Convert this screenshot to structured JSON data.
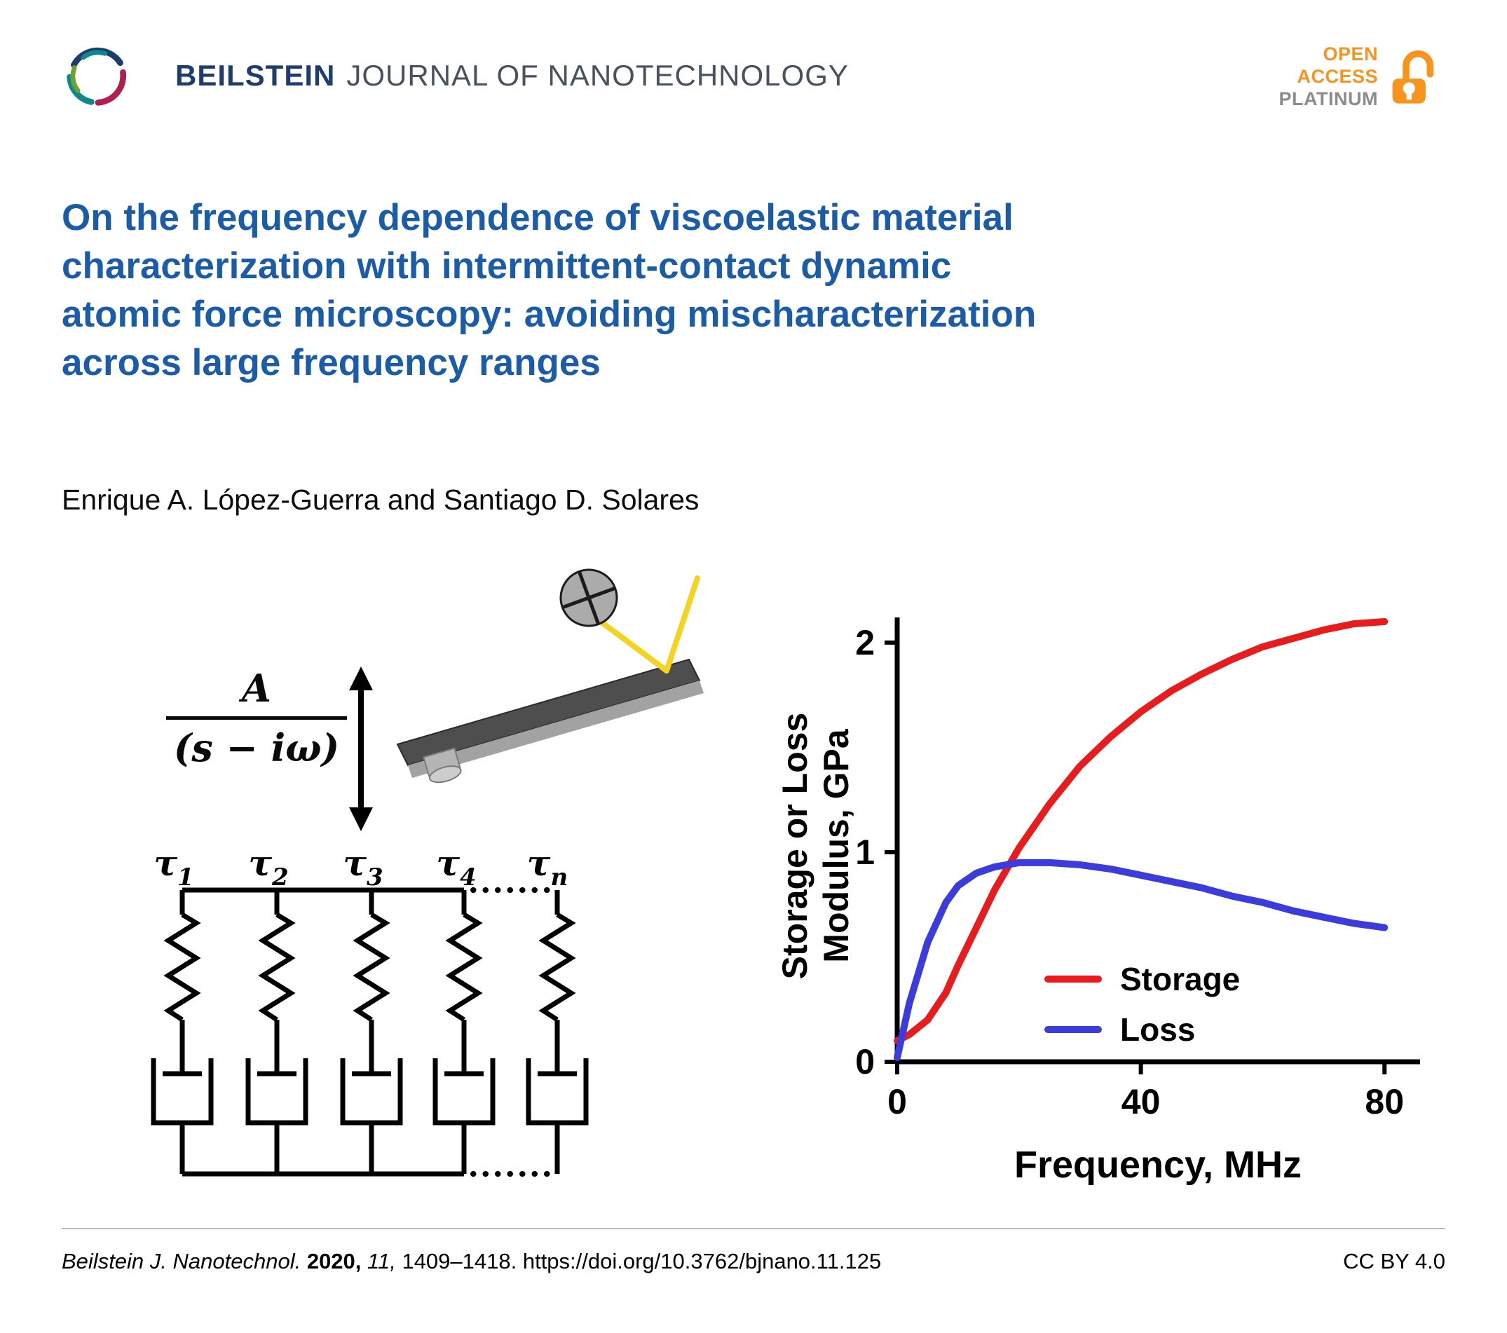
{
  "colors": {
    "title_blue": "#1a5ca8",
    "beilstein_navy": "#1e3c6e",
    "journal_gray": "#47525e",
    "open_access_orange": "#f7941d",
    "platinum_gray": "#8c8c8c",
    "storage_red": "#e81b1d",
    "loss_blue": "#3c3cdd",
    "laser_yellow": "#f4d420"
  },
  "header": {
    "journal_name_bold": "BEILSTEIN",
    "journal_name_rest": "JOURNAL OF NANOTECHNOLOGY",
    "open_access_line1": "OPEN",
    "open_access_line2": "ACCESS",
    "open_access_line3": "PLATINUM"
  },
  "article": {
    "title": "On the frequency dependence of viscoelastic material characterization with intermittent-contact dynamic atomic force microscopy: avoiding mischaracterization across large frequency ranges",
    "title_lines": [
      "On the frequency dependence of viscoelastic material",
      "characterization with intermittent-contact dynamic",
      "atomic force microscopy: avoiding mischaracterization",
      "across large frequency ranges"
    ],
    "authors": "Enrique A. López-Guerra and Santiago D. Solares"
  },
  "figure": {
    "formula_numerator": "A",
    "formula_denominator": "(s − iω)",
    "tau_labels": [
      {
        "base": "τ",
        "sub": "1"
      },
      {
        "base": "τ",
        "sub": "2"
      },
      {
        "base": "τ",
        "sub": "3"
      },
      {
        "base": "τ",
        "sub": "4"
      },
      {
        "base": "τ",
        "sub": "n"
      }
    ]
  },
  "chart_data": {
    "type": "line",
    "title": "",
    "xlabel": "Frequency, MHz",
    "ylabel": "Storage or Loss Modulus, GPa",
    "ylabel_lines": [
      "Storage or Loss",
      "Modulus, GPa"
    ],
    "xlim": [
      0,
      84
    ],
    "ylim": [
      0,
      2.12
    ],
    "xticks": [
      0,
      40,
      80
    ],
    "yticks": [
      0,
      1,
      2
    ],
    "grid": false,
    "legend_position": "inside center-right",
    "series": [
      {
        "name": "Storage",
        "color": "#e81b1d",
        "x": [
          0,
          2,
          5,
          8,
          10,
          13,
          16,
          20,
          25,
          30,
          35,
          40,
          45,
          50,
          55,
          60,
          65,
          70,
          75,
          80
        ],
        "y": [
          0.1,
          0.13,
          0.2,
          0.33,
          0.46,
          0.64,
          0.82,
          1.02,
          1.23,
          1.41,
          1.55,
          1.67,
          1.77,
          1.85,
          1.92,
          1.98,
          2.02,
          2.06,
          2.09,
          2.1
        ]
      },
      {
        "name": "Loss",
        "color": "#3c3cdd",
        "x": [
          0,
          2,
          5,
          8,
          10,
          13,
          16,
          20,
          25,
          30,
          35,
          40,
          45,
          50,
          55,
          60,
          65,
          70,
          75,
          80
        ],
        "y": [
          0.02,
          0.28,
          0.57,
          0.76,
          0.84,
          0.9,
          0.93,
          0.95,
          0.95,
          0.94,
          0.92,
          0.89,
          0.86,
          0.83,
          0.79,
          0.76,
          0.72,
          0.69,
          0.66,
          0.64
        ]
      }
    ]
  },
  "footer": {
    "citation_journal": "Beilstein J. Nanotechnol.",
    "citation_year": "2020,",
    "citation_volume": "11,",
    "citation_rest": "1409–1418. https://doi.org/10.3762/bjnano.11.125",
    "license": "CC BY 4.0"
  }
}
